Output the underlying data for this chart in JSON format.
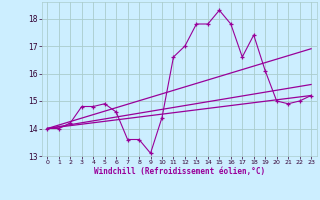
{
  "background_color": "#cceeff",
  "grid_color": "#aacccc",
  "line_color": "#990099",
  "xlabel": "Windchill (Refroidissement éolien,°C)",
  "xlim": [
    -0.5,
    23.5
  ],
  "ylim": [
    13.0,
    18.6
  ],
  "yticks": [
    13,
    14,
    15,
    16,
    17,
    18
  ],
  "xticks": [
    0,
    1,
    2,
    3,
    4,
    5,
    6,
    7,
    8,
    9,
    10,
    11,
    12,
    13,
    14,
    15,
    16,
    17,
    18,
    19,
    20,
    21,
    22,
    23
  ],
  "series1_x": [
    0,
    1,
    2,
    3,
    4,
    5,
    6,
    7,
    8,
    9,
    10,
    11,
    12,
    13,
    14,
    15,
    16,
    17,
    18,
    19,
    20,
    21,
    22,
    23
  ],
  "series1_y": [
    14.0,
    14.0,
    14.2,
    14.8,
    14.8,
    14.9,
    14.6,
    13.6,
    13.6,
    13.1,
    14.4,
    16.6,
    17.0,
    17.8,
    17.8,
    18.3,
    17.8,
    16.6,
    17.4,
    16.1,
    15.0,
    14.9,
    15.0,
    15.2
  ],
  "series2_x": [
    0,
    23
  ],
  "series2_y": [
    14.0,
    15.2
  ],
  "series3_x": [
    0,
    23
  ],
  "series3_y": [
    14.0,
    16.9
  ],
  "series4_x": [
    0,
    23
  ],
  "series4_y": [
    14.0,
    15.6
  ]
}
